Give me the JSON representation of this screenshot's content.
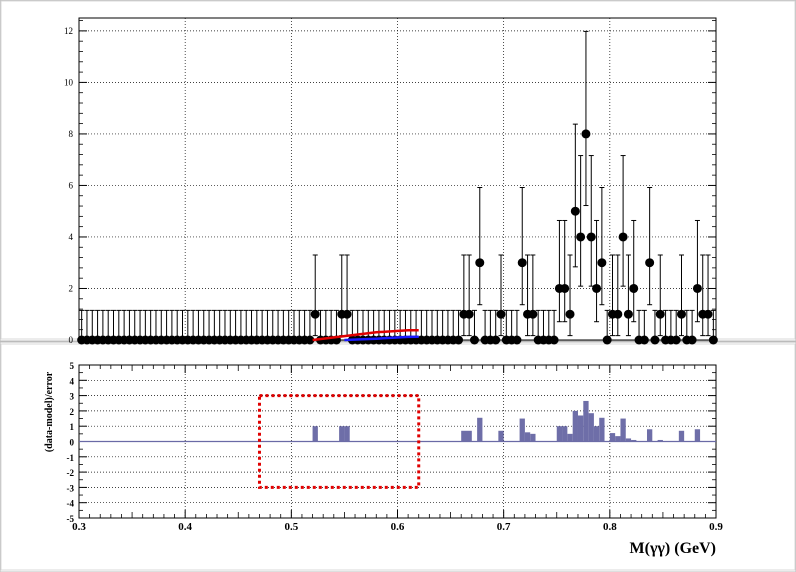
{
  "chart_data": [
    {
      "type": "scatter",
      "panel": "fit",
      "xlim": [
        0.3,
        0.9
      ],
      "ylim": [
        0,
        12.5
      ],
      "yticks": [
        0,
        2,
        4,
        6,
        8,
        10,
        12
      ],
      "grid": true,
      "error_bar_upper_for_zero": 1.15,
      "x": [
        0.5225,
        0.5475,
        0.5525,
        0.6625,
        0.6675,
        0.6775,
        0.6975,
        0.7175,
        0.7225,
        0.7275,
        0.7525,
        0.7575,
        0.7625,
        0.7675,
        0.7725,
        0.7775,
        0.7825,
        0.7875,
        0.7925,
        0.8025,
        0.8075,
        0.8125,
        0.8175,
        0.8225,
        0.8375,
        0.8475,
        0.8675,
        0.8825,
        0.8875,
        0.8925
      ],
      "y": [
        1,
        1,
        1,
        1,
        1,
        3,
        1,
        3,
        1,
        1,
        2,
        2,
        1,
        5,
        4,
        8,
        4,
        2,
        3,
        1,
        1,
        4,
        1,
        2,
        3,
        1,
        1,
        2,
        1,
        1
      ],
      "yerr_low": [
        0.83,
        0.83,
        0.83,
        0.83,
        0.83,
        1.63,
        0.83,
        1.63,
        0.83,
        0.83,
        1.29,
        1.29,
        0.83,
        2.16,
        1.91,
        2.78,
        1.91,
        1.29,
        1.63,
        0.83,
        0.83,
        1.91,
        0.83,
        1.29,
        1.63,
        0.83,
        0.83,
        1.29,
        0.83,
        0.83
      ],
      "yerr_high": [
        2.3,
        2.3,
        2.3,
        2.3,
        2.3,
        2.92,
        2.3,
        2.92,
        2.3,
        2.3,
        2.64,
        2.64,
        2.3,
        3.38,
        3.16,
        3.98,
        3.16,
        2.64,
        2.92,
        2.3,
        2.3,
        3.16,
        2.3,
        2.64,
        2.92,
        2.3,
        2.3,
        2.64,
        2.3,
        2.3
      ],
      "model_red": {
        "x": [
          0.52,
          0.55,
          0.58,
          0.61,
          0.62
        ],
        "y": [
          0.0,
          0.15,
          0.3,
          0.38,
          0.38
        ]
      },
      "model_blue": {
        "x": [
          0.55,
          0.58,
          0.61,
          0.62
        ],
        "y": [
          0.0,
          0.05,
          0.12,
          0.13
        ]
      }
    },
    {
      "type": "bar",
      "panel": "pull",
      "ylabel": "(data-model)/error",
      "xlabel": "M(γγ) (GeV)",
      "xlim": [
        0.3,
        0.9
      ],
      "ylim": [
        -5,
        5
      ],
      "yticks": [
        -5,
        -4,
        -3,
        -2,
        -1,
        0,
        1,
        2,
        3,
        4,
        5
      ],
      "xticks": [
        0.3,
        0.4,
        0.5,
        0.6,
        0.7,
        0.8,
        0.9
      ],
      "bin_width": 0.005,
      "x": [
        0.5225,
        0.5475,
        0.5525,
        0.6625,
        0.6675,
        0.6775,
        0.6975,
        0.7175,
        0.7225,
        0.7275,
        0.7525,
        0.7575,
        0.7625,
        0.7675,
        0.7725,
        0.7775,
        0.7825,
        0.7875,
        0.7925,
        0.8025,
        0.8075,
        0.8125,
        0.8175,
        0.8225,
        0.8375,
        0.8475,
        0.8675,
        0.8825,
        0.8875,
        0.8925
      ],
      "values": [
        1.0,
        1.0,
        1.0,
        0.7,
        0.7,
        1.55,
        0.7,
        1.5,
        0.6,
        0.5,
        1.0,
        1.0,
        0.5,
        2.0,
        1.7,
        2.65,
        1.85,
        1.0,
        1.55,
        0.55,
        0.35,
        1.5,
        0.2,
        0.1,
        0.8,
        0.1,
        0.7,
        0.8,
        0.0,
        0.0
      ],
      "highlight_box": {
        "x": [
          0.47,
          0.62
        ],
        "y": [
          -3,
          3
        ]
      }
    }
  ]
}
